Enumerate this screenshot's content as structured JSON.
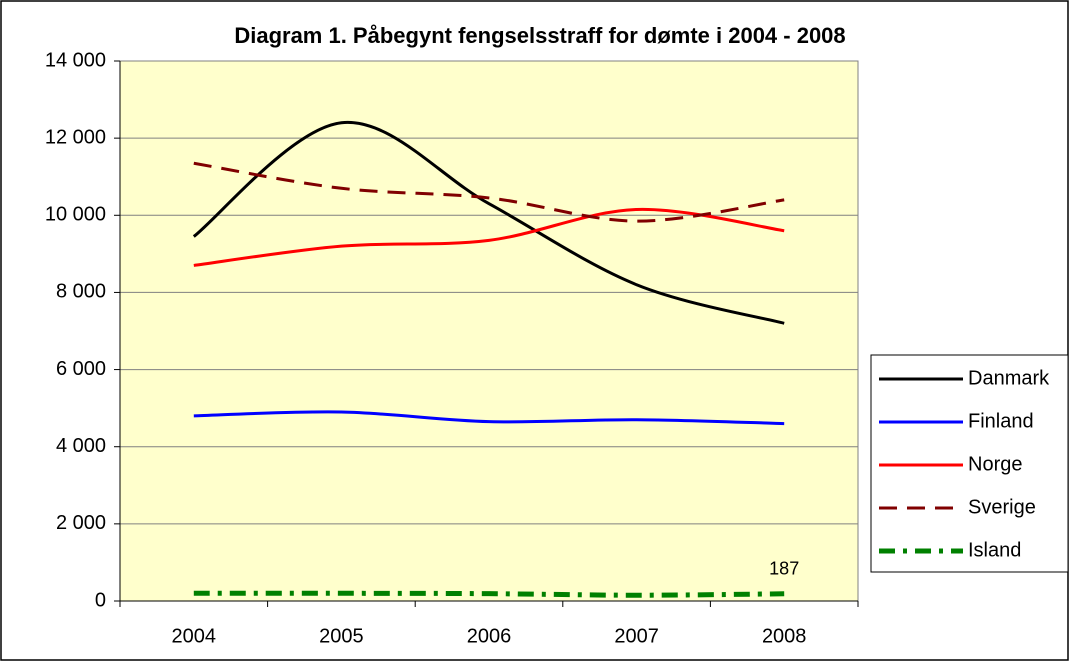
{
  "chart_data": {
    "type": "line",
    "title": "Diagram 1. Påbegynt fengselsstraff for dømte i 2004 - 2008",
    "categories": [
      "2004",
      "2005",
      "2006",
      "2007",
      "2008"
    ],
    "series": [
      {
        "name": "Danmark",
        "color": "#000000",
        "dash": "solid",
        "values": [
          9450,
          12400,
          10300,
          8200,
          7200
        ]
      },
      {
        "name": "Finland",
        "color": "#0000ff",
        "dash": "solid",
        "values": [
          4800,
          4900,
          4650,
          4700,
          4600
        ]
      },
      {
        "name": "Norge",
        "color": "#ff0000",
        "dash": "solid",
        "values": [
          8700,
          9200,
          9350,
          10150,
          9600
        ]
      },
      {
        "name": "Sverige",
        "color": "#800000",
        "dash": "dash",
        "values": [
          11350,
          10700,
          10450,
          9850,
          10400
        ]
      },
      {
        "name": "Island",
        "color": "#008000",
        "dash": "dashdot",
        "values": [
          200,
          200,
          190,
          150,
          187
        ]
      }
    ],
    "data_label_series": 4,
    "data_label_index": 4,
    "ylim": [
      0,
      14000
    ],
    "yticks": [
      0,
      {
        "value": 2000,
        "label": "2 000"
      },
      {
        "value": 4000,
        "label": "4 000"
      },
      {
        "value": 6000,
        "label": "6 000"
      },
      {
        "value": 8000,
        "label": "8 000"
      },
      {
        "value": 10000,
        "label": "10 000"
      },
      {
        "value": 12000,
        "label": "12 000"
      },
      {
        "value": 14000,
        "label": "14 000"
      }
    ],
    "grid": true,
    "smooth": true,
    "legend": "right",
    "plot_background": "#ffffcc"
  }
}
